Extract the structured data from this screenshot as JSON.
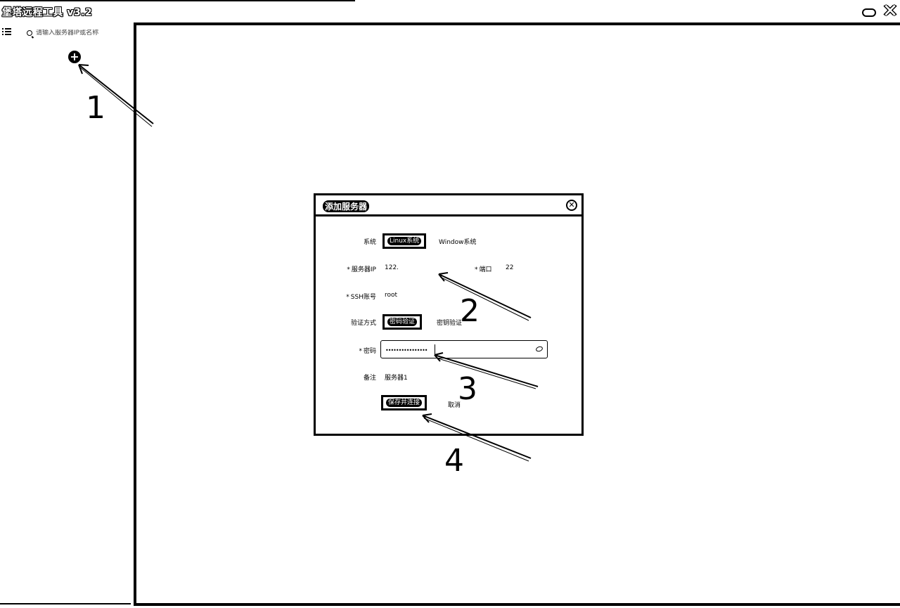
{
  "window": {
    "title": "堡塔远程工具 v3.2",
    "minimize_glyph": "",
    "close_glyph": "✕"
  },
  "sidebar": {
    "search_placeholder": "请输入服务器IP或名称",
    "add_glyph": "+"
  },
  "dialog": {
    "title": "添加服务器",
    "close_glyph": "✕",
    "system_label": "系统",
    "system_options": [
      "Linux系统",
      "Window系统"
    ],
    "system_selected": "Linux系统",
    "ip_label": "服务器IP",
    "ip_value": "122.",
    "port_label": "端口",
    "port_value": "22",
    "ssh_label": "SSH账号",
    "ssh_value": "root",
    "auth_label": "验证方式",
    "auth_options": [
      "密码验证",
      "密钥验证"
    ],
    "auth_selected": "密码验证",
    "password_label": "密码",
    "password_value": "••••••••••••••••",
    "remark_label": "备注",
    "remark_value": "服务器1",
    "save_label": "保存并连接",
    "cancel_label": "取消"
  },
  "annotations": {
    "step1": "1",
    "step2": "2",
    "step3": "3",
    "step4": "4"
  }
}
